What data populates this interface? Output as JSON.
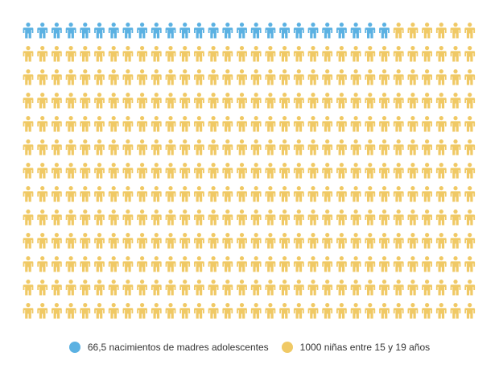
{
  "chart_data": {
    "type": "pictogram",
    "title": "",
    "total": 416,
    "rows": 13,
    "columns": 32,
    "series": [
      {
        "name": "66,5 nacimientos de madres adolescentes",
        "value": 26,
        "color": "#5bb1e2",
        "icon": "person-icon"
      },
      {
        "name": "1000 niñas entre 15 y 19 años",
        "value": 390,
        "color": "#f0c965",
        "icon": "person-icon"
      }
    ],
    "legend_position": "bottom-center"
  }
}
